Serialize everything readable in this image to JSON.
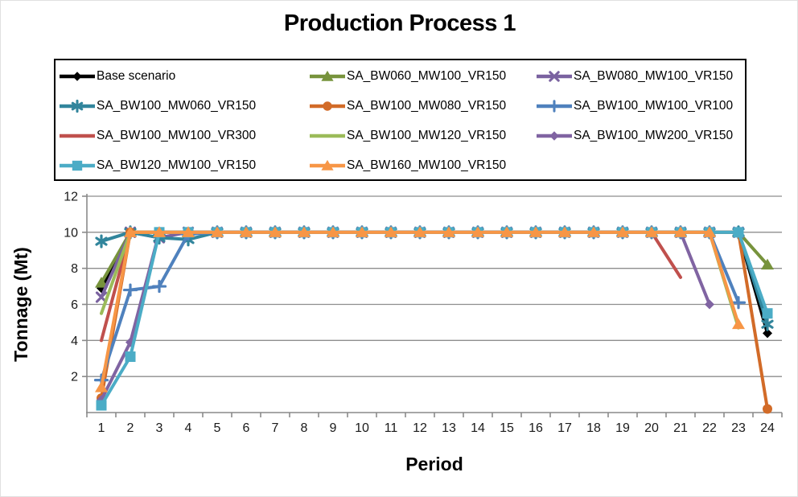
{
  "title": "Production Process 1",
  "axes": {
    "x_title": "Period",
    "y_title": "Tonnage (Mt)"
  },
  "style_colors": {
    "grid": "#8e8e8e",
    "axis": "#8a8a8a",
    "tick_text": "#1a1a1a",
    "title_text": "#000000"
  },
  "chart_data": {
    "type": "line",
    "title": "Production Process 1",
    "xlabel": "Period",
    "ylabel": "Tonnage (Mt)",
    "categories": [
      1,
      2,
      3,
      4,
      5,
      6,
      7,
      8,
      9,
      10,
      11,
      12,
      13,
      14,
      15,
      16,
      17,
      18,
      19,
      20,
      21,
      22,
      23,
      24
    ],
    "ylim": [
      0,
      12
    ],
    "yticks": [
      2,
      4,
      6,
      8,
      10,
      12
    ],
    "grid": true,
    "legend_position": "top",
    "series": [
      {
        "name": "Base scenario",
        "color": "#000000",
        "marker": "diamond",
        "values": [
          6.9,
          10,
          10,
          10,
          10,
          10,
          10,
          10,
          10,
          10,
          10,
          10,
          10,
          10,
          10,
          10,
          10,
          10,
          10,
          10,
          10,
          10,
          10,
          4.4
        ]
      },
      {
        "name": "SA_BW060_MW100_VR150",
        "color": "#77933C",
        "marker": "triangle",
        "values": [
          7.2,
          10,
          10,
          10,
          10,
          10,
          10,
          10,
          10,
          10,
          10,
          10,
          10,
          10,
          10,
          10,
          10,
          10,
          10,
          10,
          10,
          10,
          10,
          8.2
        ]
      },
      {
        "name": "SA_BW080_MW100_VR150",
        "color": "#7A62A0",
        "marker": "x",
        "values": [
          6.4,
          10,
          9.7,
          10,
          10,
          10,
          10,
          10,
          10,
          10,
          10,
          10,
          10,
          10,
          10,
          10,
          10,
          10,
          10,
          10,
          10,
          10,
          10,
          null
        ]
      },
      {
        "name": "SA_BW100_MW060_VR150",
        "color": "#31859C",
        "marker": "asterisk",
        "values": [
          9.5,
          10,
          9.7,
          9.6,
          10,
          10,
          10,
          10,
          10,
          10,
          10,
          10,
          10,
          10,
          10,
          10,
          10,
          10,
          10,
          10,
          10,
          10,
          10,
          4.9
        ]
      },
      {
        "name": "SA_BW100_MW080_VR150",
        "color": "#D26B28",
        "marker": "circle",
        "values": [
          0.8,
          10,
          10,
          10,
          10,
          10,
          10,
          10,
          10,
          10,
          10,
          10,
          10,
          10,
          10,
          10,
          10,
          10,
          10,
          10,
          10,
          10,
          10,
          0.2
        ]
      },
      {
        "name": "SA_BW100_MW100_VR100",
        "color": "#4F81BD",
        "marker": "plus",
        "values": [
          1.8,
          6.8,
          7,
          9.9,
          10,
          10,
          10,
          10,
          10,
          10,
          10,
          10,
          10,
          10,
          10,
          10,
          10,
          10,
          10,
          10,
          10,
          10,
          6.1,
          null
        ]
      },
      {
        "name": "SA_BW100_MW100_VR300",
        "color": "#C0504D",
        "marker": "none",
        "values": [
          4,
          10,
          10,
          10,
          10,
          10,
          10,
          10,
          10,
          10,
          10,
          10,
          10,
          10,
          10,
          10,
          10,
          10,
          10,
          10,
          7.5,
          null,
          null,
          null
        ]
      },
      {
        "name": "SA_BW100_MW120_VR150",
        "color": "#9BBB59",
        "marker": "none",
        "values": [
          5.5,
          10,
          10,
          10,
          10,
          10,
          10,
          10,
          10,
          10,
          10,
          10,
          10,
          10,
          10,
          10,
          10,
          10,
          10,
          10,
          10,
          10,
          4.7,
          null
        ]
      },
      {
        "name": "SA_BW100_MW200_VR150",
        "color": "#8064A2",
        "marker": "diamond",
        "values": [
          0.7,
          3.9,
          10,
          10,
          10,
          10,
          10,
          10,
          10,
          10,
          10,
          10,
          10,
          10,
          10,
          10,
          10,
          10,
          10,
          10,
          10,
          6,
          null,
          null
        ]
      },
      {
        "name": "SA_BW120_MW100_VR150",
        "color": "#4BACC6",
        "marker": "square",
        "values": [
          0.4,
          3.1,
          10,
          10,
          10,
          10,
          10,
          10,
          10,
          10,
          10,
          10,
          10,
          10,
          10,
          10,
          10,
          10,
          10,
          10,
          10,
          10,
          10,
          5.5
        ]
      },
      {
        "name": "SA_BW160_MW100_VR150",
        "color": "#F79646",
        "marker": "triangle",
        "values": [
          1.4,
          10,
          10,
          10,
          10,
          10,
          10,
          10,
          10,
          10,
          10,
          10,
          10,
          10,
          10,
          10,
          10,
          10,
          10,
          10,
          10,
          10,
          4.9,
          null
        ]
      }
    ]
  }
}
